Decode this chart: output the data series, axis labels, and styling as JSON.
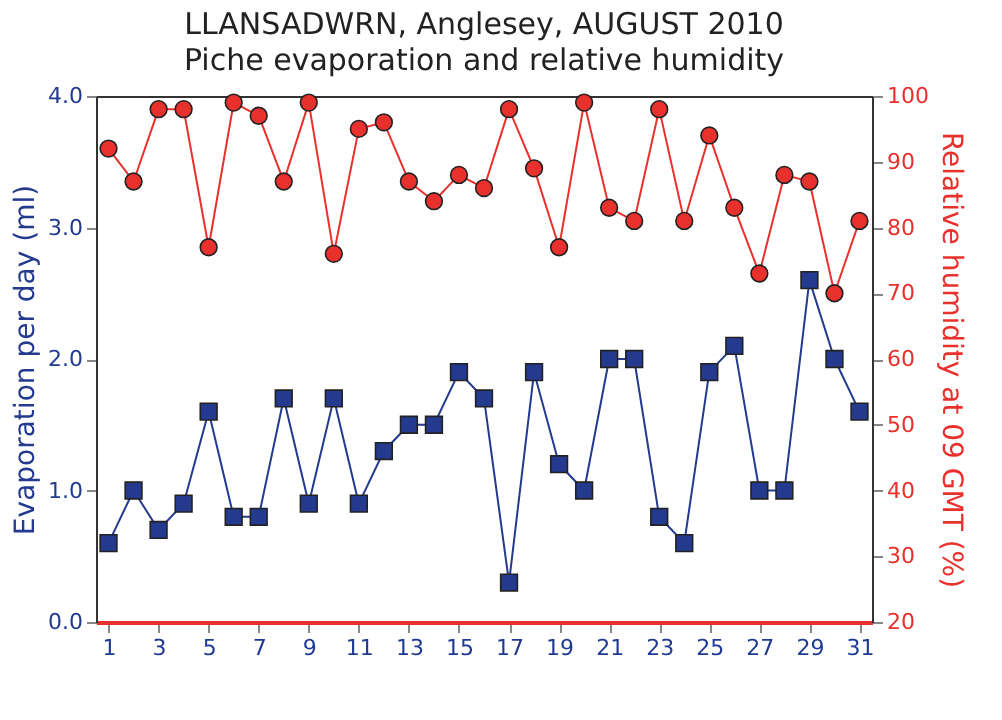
{
  "chart_data": {
    "type": "line",
    "title": "LLANSADWRN, Anglesey, AUGUST 2010",
    "subtitle": "Piche evaporation and relative humidity",
    "xlabel": null,
    "ylabel": "Evaporation per day (ml)",
    "y2label": "Relative humidity at 09 GMT (%)",
    "x": [
      1,
      2,
      3,
      4,
      5,
      6,
      7,
      8,
      9,
      10,
      11,
      12,
      13,
      14,
      15,
      16,
      17,
      18,
      19,
      20,
      21,
      22,
      23,
      24,
      25,
      26,
      27,
      28,
      29,
      30,
      31
    ],
    "xlim": [
      0.5,
      31.5
    ],
    "xticks": [
      1,
      3,
      5,
      7,
      9,
      11,
      13,
      15,
      17,
      19,
      21,
      23,
      25,
      27,
      29,
      31
    ],
    "ylim": [
      0,
      4
    ],
    "yticks": [
      {
        "value": 0,
        "label": "0.0"
      },
      {
        "value": 1,
        "label": "1.0"
      },
      {
        "value": 2,
        "label": "2.0"
      },
      {
        "value": 3,
        "label": "3.0"
      },
      {
        "value": 4,
        "label": "4.0"
      }
    ],
    "y2lim": [
      20,
      100
    ],
    "y2ticks": [
      20,
      30,
      40,
      50,
      60,
      70,
      80,
      90,
      100
    ],
    "grid": false,
    "series": [
      {
        "color": "#233a8f",
        "marker": "square",
        "values": [
          0.6,
          1.0,
          0.7,
          0.9,
          1.6,
          0.8,
          0.8,
          1.7,
          0.9,
          1.7,
          0.9,
          1.3,
          1.5,
          1.5,
          1.9,
          1.7,
          0.3,
          1.9,
          1.2,
          1.0,
          2.0,
          2.0,
          0.8,
          0.6,
          1.9,
          2.1,
          1.0,
          1.0,
          2.6,
          2.0,
          1.6
        ]
      },
      {
        "color": "#e8302c",
        "marker": "circle",
        "axis": "y2",
        "values": [
          92,
          87,
          98,
          98,
          77,
          99,
          97,
          87,
          99,
          76,
          95,
          96,
          87,
          84,
          88,
          86,
          98,
          89,
          77,
          99,
          83,
          81,
          98,
          81,
          94,
          83,
          73,
          88,
          87,
          70,
          81
        ]
      }
    ]
  }
}
